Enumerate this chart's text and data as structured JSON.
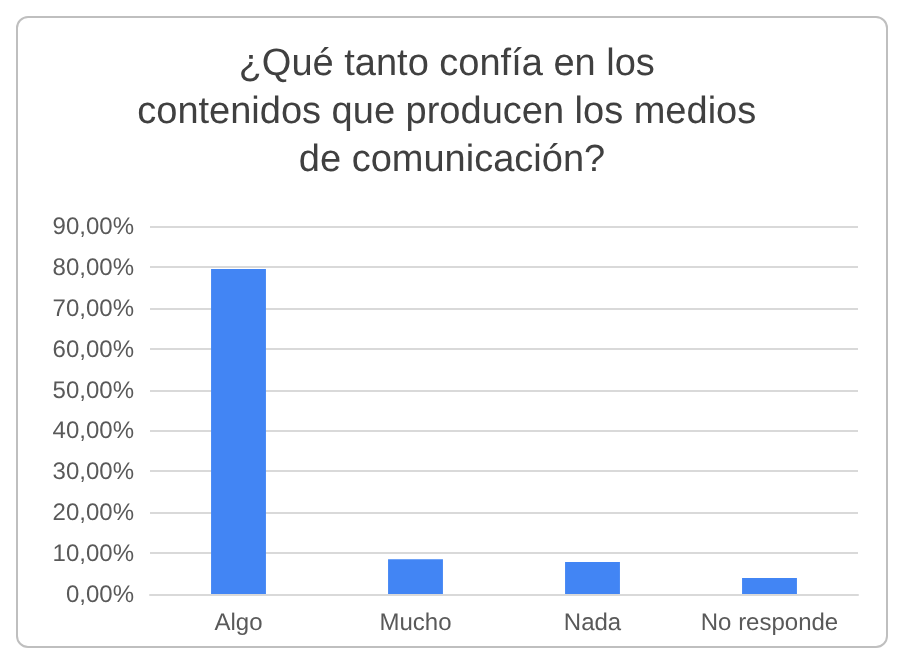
{
  "chart_data": {
    "type": "bar",
    "title": "¿Qué tanto confía en los contenidos que producen los medios de comunicación?",
    "categories": [
      "Algo",
      "Mucho",
      "Nada",
      "No responde"
    ],
    "values": [
      79.5,
      8.5,
      7.8,
      3.9
    ],
    "color": "#4285f4",
    "ylim": [
      0,
      90
    ],
    "yticks": [
      {
        "value": 0,
        "label": "0,00%"
      },
      {
        "value": 10,
        "label": "10,00%"
      },
      {
        "value": 20,
        "label": "20,00%"
      },
      {
        "value": 30,
        "label": "30,00%"
      },
      {
        "value": 40,
        "label": "40,00%"
      },
      {
        "value": 50,
        "label": "50,00%"
      },
      {
        "value": 60,
        "label": "60,00%"
      },
      {
        "value": 70,
        "label": "70,00%"
      },
      {
        "value": 80,
        "label": "80,00%"
      },
      {
        "value": 90,
        "label": "90,00%"
      }
    ],
    "grid": true
  }
}
